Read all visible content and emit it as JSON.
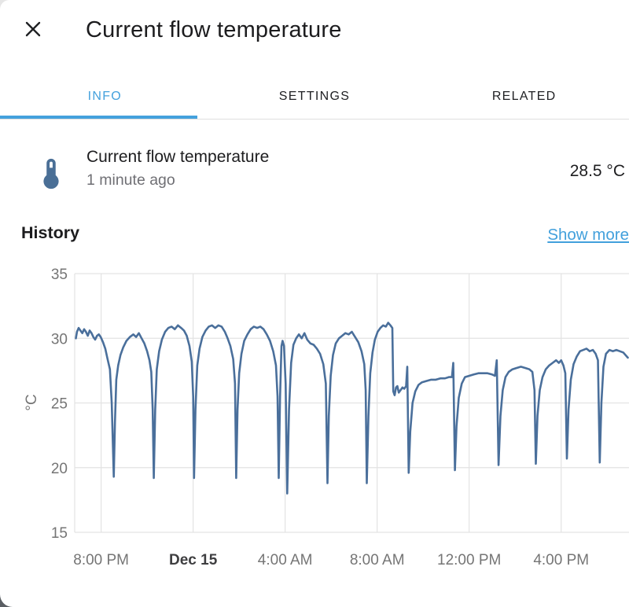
{
  "header": {
    "title": "Current flow temperature"
  },
  "tabs": [
    {
      "label": "INFO",
      "active": true
    },
    {
      "label": "SETTINGS",
      "active": false
    },
    {
      "label": "RELATED",
      "active": false
    }
  ],
  "entity": {
    "name": "Current flow temperature",
    "last_changed": "1 minute ago",
    "value": "28.5 °C"
  },
  "history": {
    "title": "History",
    "show_more": "Show more"
  },
  "icons": {
    "close": "close-icon",
    "entity": "thermometer-icon"
  },
  "colors": {
    "accent": "#44a1dd",
    "line": "#4a6f9b",
    "icon": "#4a6f96",
    "gridline": "#e3e3e3",
    "tick_text": "#757575",
    "text_primary": "#1d1d1f",
    "text_secondary": "#6f6f74"
  },
  "chart_data": {
    "type": "line",
    "title": "History",
    "ylabel": "°C",
    "xlabel": "",
    "grid": true,
    "legend": "none",
    "x_unit": "hours since Dec 14 00:00",
    "x_range": [
      18.85,
      42.95
    ],
    "y_range": [
      15,
      35
    ],
    "x_ticks": [
      {
        "value": 20,
        "label": "8:00 PM"
      },
      {
        "value": 24,
        "label": "Dec 15",
        "emphasis": true
      },
      {
        "value": 28,
        "label": "4:00 AM"
      },
      {
        "value": 32,
        "label": "8:00 AM"
      },
      {
        "value": 36,
        "label": "12:00 PM"
      },
      {
        "value": 40,
        "label": "4:00 PM"
      }
    ],
    "y_ticks": [
      {
        "value": 15,
        "label": "15"
      },
      {
        "value": 20,
        "label": "20"
      },
      {
        "value": 25,
        "label": "25"
      },
      {
        "value": 30,
        "label": "30"
      },
      {
        "value": 35,
        "label": "35"
      }
    ],
    "series": [
      {
        "name": "Current flow temperature",
        "points": [
          [
            18.9,
            30.0
          ],
          [
            18.95,
            30.5
          ],
          [
            19.02,
            30.8
          ],
          [
            19.1,
            30.6
          ],
          [
            19.18,
            30.4
          ],
          [
            19.26,
            30.7
          ],
          [
            19.34,
            30.5
          ],
          [
            19.42,
            30.2
          ],
          [
            19.5,
            30.6
          ],
          [
            19.58,
            30.4
          ],
          [
            19.66,
            30.1
          ],
          [
            19.74,
            29.9
          ],
          [
            19.82,
            30.2
          ],
          [
            19.9,
            30.3
          ],
          [
            19.98,
            30.1
          ],
          [
            20.08,
            29.7
          ],
          [
            20.18,
            29.2
          ],
          [
            20.28,
            28.4
          ],
          [
            20.38,
            27.6
          ],
          [
            20.46,
            25.0
          ],
          [
            20.55,
            19.3
          ],
          [
            20.6,
            23.5
          ],
          [
            20.66,
            26.8
          ],
          [
            20.74,
            27.9
          ],
          [
            20.84,
            28.7
          ],
          [
            20.96,
            29.3
          ],
          [
            21.1,
            29.8
          ],
          [
            21.25,
            30.1
          ],
          [
            21.4,
            30.3
          ],
          [
            21.52,
            30.1
          ],
          [
            21.64,
            30.4
          ],
          [
            21.76,
            30.0
          ],
          [
            21.88,
            29.6
          ],
          [
            22.0,
            29.0
          ],
          [
            22.1,
            28.3
          ],
          [
            22.18,
            27.4
          ],
          [
            22.24,
            24.5
          ],
          [
            22.29,
            19.2
          ],
          [
            22.35,
            24.5
          ],
          [
            22.42,
            27.6
          ],
          [
            22.52,
            29.0
          ],
          [
            22.64,
            29.9
          ],
          [
            22.78,
            30.5
          ],
          [
            22.92,
            30.8
          ],
          [
            23.06,
            30.9
          ],
          [
            23.2,
            30.7
          ],
          [
            23.34,
            31.0
          ],
          [
            23.48,
            30.8
          ],
          [
            23.6,
            30.6
          ],
          [
            23.72,
            30.2
          ],
          [
            23.84,
            29.4
          ],
          [
            23.94,
            28.2
          ],
          [
            24.0,
            25.5
          ],
          [
            24.04,
            19.2
          ],
          [
            24.1,
            24.5
          ],
          [
            24.18,
            27.9
          ],
          [
            24.28,
            29.2
          ],
          [
            24.4,
            30.1
          ],
          [
            24.54,
            30.6
          ],
          [
            24.68,
            30.9
          ],
          [
            24.82,
            31.0
          ],
          [
            24.96,
            30.8
          ],
          [
            25.1,
            31.0
          ],
          [
            25.24,
            30.9
          ],
          [
            25.38,
            30.5
          ],
          [
            25.5,
            30.0
          ],
          [
            25.62,
            29.4
          ],
          [
            25.74,
            28.4
          ],
          [
            25.82,
            26.5
          ],
          [
            25.87,
            19.2
          ],
          [
            25.93,
            24.5
          ],
          [
            26.0,
            27.3
          ],
          [
            26.1,
            28.8
          ],
          [
            26.22,
            29.8
          ],
          [
            26.36,
            30.3
          ],
          [
            26.5,
            30.7
          ],
          [
            26.64,
            30.9
          ],
          [
            26.78,
            30.8
          ],
          [
            26.92,
            30.9
          ],
          [
            27.06,
            30.7
          ],
          [
            27.2,
            30.3
          ],
          [
            27.34,
            29.8
          ],
          [
            27.48,
            29.0
          ],
          [
            27.6,
            27.9
          ],
          [
            27.67,
            25.5
          ],
          [
            27.72,
            19.2
          ],
          [
            27.78,
            25.5
          ],
          [
            27.84,
            29.4
          ],
          [
            27.89,
            29.8
          ],
          [
            27.95,
            29.4
          ],
          [
            28.02,
            26.5
          ],
          [
            28.09,
            18.0
          ],
          [
            28.17,
            24.5
          ],
          [
            28.26,
            28.1
          ],
          [
            28.36,
            29.5
          ],
          [
            28.48,
            30.0
          ],
          [
            28.6,
            30.3
          ],
          [
            28.72,
            30.0
          ],
          [
            28.84,
            30.4
          ],
          [
            28.96,
            29.9
          ],
          [
            29.1,
            29.6
          ],
          [
            29.24,
            29.5
          ],
          [
            29.38,
            29.2
          ],
          [
            29.52,
            28.8
          ],
          [
            29.66,
            28.0
          ],
          [
            29.77,
            26.5
          ],
          [
            29.84,
            18.8
          ],
          [
            29.9,
            24.0
          ],
          [
            29.98,
            27.1
          ],
          [
            30.08,
            28.7
          ],
          [
            30.2,
            29.6
          ],
          [
            30.34,
            30.0
          ],
          [
            30.48,
            30.2
          ],
          [
            30.62,
            30.4
          ],
          [
            30.76,
            30.3
          ],
          [
            30.9,
            30.5
          ],
          [
            31.04,
            30.1
          ],
          [
            31.18,
            29.7
          ],
          [
            31.32,
            29.0
          ],
          [
            31.44,
            28.0
          ],
          [
            31.5,
            26.0
          ],
          [
            31.55,
            18.8
          ],
          [
            31.62,
            24.0
          ],
          [
            31.7,
            27.3
          ],
          [
            31.8,
            28.9
          ],
          [
            31.9,
            29.9
          ],
          [
            32.02,
            30.5
          ],
          [
            32.14,
            30.8
          ],
          [
            32.26,
            31.0
          ],
          [
            32.38,
            30.9
          ],
          [
            32.48,
            31.2
          ],
          [
            32.58,
            31.0
          ],
          [
            32.66,
            30.8
          ],
          [
            32.7,
            25.9
          ],
          [
            32.76,
            25.6
          ],
          [
            32.82,
            26.2
          ],
          [
            32.88,
            26.3
          ],
          [
            32.94,
            25.8
          ],
          [
            33.02,
            26.0
          ],
          [
            33.1,
            26.2
          ],
          [
            33.18,
            26.1
          ],
          [
            33.26,
            26.3
          ],
          [
            33.31,
            27.8
          ],
          [
            33.37,
            19.6
          ],
          [
            33.44,
            22.8
          ],
          [
            33.54,
            25.0
          ],
          [
            33.66,
            25.9
          ],
          [
            33.8,
            26.4
          ],
          [
            33.95,
            26.6
          ],
          [
            34.15,
            26.7
          ],
          [
            34.35,
            26.8
          ],
          [
            34.55,
            26.8
          ],
          [
            34.75,
            26.9
          ],
          [
            34.95,
            26.9
          ],
          [
            35.12,
            27.0
          ],
          [
            35.25,
            27.0
          ],
          [
            35.31,
            28.1
          ],
          [
            35.38,
            19.8
          ],
          [
            35.45,
            23.2
          ],
          [
            35.55,
            25.4
          ],
          [
            35.68,
            26.5
          ],
          [
            35.82,
            27.0
          ],
          [
            36.0,
            27.1
          ],
          [
            36.2,
            27.2
          ],
          [
            36.4,
            27.3
          ],
          [
            36.6,
            27.3
          ],
          [
            36.8,
            27.3
          ],
          [
            37.0,
            27.2
          ],
          [
            37.12,
            27.1
          ],
          [
            37.2,
            28.3
          ],
          [
            37.28,
            20.2
          ],
          [
            37.36,
            24.0
          ],
          [
            37.46,
            26.0
          ],
          [
            37.58,
            27.0
          ],
          [
            37.72,
            27.4
          ],
          [
            37.88,
            27.6
          ],
          [
            38.05,
            27.7
          ],
          [
            38.25,
            27.8
          ],
          [
            38.45,
            27.7
          ],
          [
            38.62,
            27.6
          ],
          [
            38.75,
            27.4
          ],
          [
            38.84,
            26.0
          ],
          [
            38.9,
            20.3
          ],
          [
            38.97,
            24.0
          ],
          [
            39.07,
            26.0
          ],
          [
            39.19,
            27.0
          ],
          [
            39.33,
            27.6
          ],
          [
            39.48,
            27.9
          ],
          [
            39.63,
            28.1
          ],
          [
            39.78,
            28.3
          ],
          [
            39.9,
            28.1
          ],
          [
            40.0,
            28.3
          ],
          [
            40.1,
            27.9
          ],
          [
            40.18,
            27.3
          ],
          [
            40.25,
            20.7
          ],
          [
            40.32,
            24.5
          ],
          [
            40.42,
            26.8
          ],
          [
            40.54,
            28.0
          ],
          [
            40.68,
            28.6
          ],
          [
            40.82,
            29.0
          ],
          [
            40.96,
            29.1
          ],
          [
            41.1,
            29.2
          ],
          [
            41.24,
            29.0
          ],
          [
            41.38,
            29.1
          ],
          [
            41.5,
            28.8
          ],
          [
            41.6,
            28.3
          ],
          [
            41.68,
            20.4
          ],
          [
            41.75,
            25.0
          ],
          [
            41.84,
            27.8
          ],
          [
            41.95,
            28.8
          ],
          [
            42.1,
            29.1
          ],
          [
            42.25,
            29.0
          ],
          [
            42.4,
            29.1
          ],
          [
            42.55,
            29.0
          ],
          [
            42.7,
            28.9
          ],
          [
            42.9,
            28.5
          ]
        ]
      }
    ]
  }
}
